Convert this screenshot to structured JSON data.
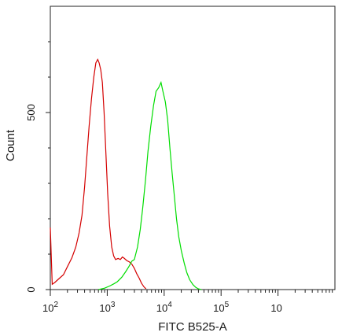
{
  "chart_data": {
    "type": "line",
    "title": "",
    "xlabel": "FITC B525-A",
    "ylabel": "Count",
    "x_scale": "log",
    "xlim": [
      100,
      10000000
    ],
    "ylim": [
      0,
      800
    ],
    "x_ticks": [
      {
        "value": 100,
        "base": "10",
        "exp": "2"
      },
      {
        "value": 1000,
        "base": "10",
        "exp": "3"
      },
      {
        "value": 10000,
        "base": "10",
        "exp": "4"
      },
      {
        "value": 100000,
        "base": "10",
        "exp": "5"
      },
      {
        "value": 1000000,
        "base": "10",
        "exp": ""
      }
    ],
    "y_ticks": [
      {
        "value": 0,
        "label": "0"
      },
      {
        "value": 500,
        "label": "500"
      }
    ],
    "y_minor_ticks": [
      100,
      200,
      300,
      400,
      600,
      700
    ],
    "grid": false,
    "legend": "none",
    "series": [
      {
        "color": "#d40000",
        "points": [
          [
            100,
            175
          ],
          [
            108,
            15
          ],
          [
            120,
            20
          ],
          [
            140,
            30
          ],
          [
            170,
            42
          ],
          [
            200,
            65
          ],
          [
            240,
            90
          ],
          [
            280,
            120
          ],
          [
            320,
            160
          ],
          [
            360,
            210
          ],
          [
            400,
            290
          ],
          [
            440,
            380
          ],
          [
            480,
            460
          ],
          [
            530,
            540
          ],
          [
            580,
            600
          ],
          [
            630,
            640
          ],
          [
            680,
            650
          ],
          [
            720,
            640
          ],
          [
            770,
            620
          ],
          [
            820,
            585
          ],
          [
            880,
            500
          ],
          [
            950,
            380
          ],
          [
            1020,
            270
          ],
          [
            1100,
            180
          ],
          [
            1200,
            120
          ],
          [
            1300,
            95
          ],
          [
            1400,
            85
          ],
          [
            1550,
            88
          ],
          [
            1700,
            85
          ],
          [
            1850,
            92
          ],
          [
            2000,
            88
          ],
          [
            2200,
            82
          ],
          [
            2450,
            78
          ],
          [
            2700,
            72
          ],
          [
            3000,
            60
          ],
          [
            3300,
            45
          ],
          [
            3650,
            32
          ],
          [
            4000,
            18
          ],
          [
            4400,
            8
          ],
          [
            4800,
            2
          ]
        ]
      },
      {
        "color": "#00dd00",
        "points": [
          [
            700,
            0
          ],
          [
            900,
            4
          ],
          [
            1100,
            10
          ],
          [
            1300,
            16
          ],
          [
            1500,
            22
          ],
          [
            1800,
            35
          ],
          [
            2100,
            50
          ],
          [
            2400,
            65
          ],
          [
            2700,
            80
          ],
          [
            3000,
            85
          ],
          [
            3400,
            120
          ],
          [
            3800,
            170
          ],
          [
            4200,
            230
          ],
          [
            4700,
            310
          ],
          [
            5200,
            390
          ],
          [
            5800,
            460
          ],
          [
            6500,
            520
          ],
          [
            7200,
            560
          ],
          [
            8000,
            570
          ],
          [
            8800,
            585
          ],
          [
            9500,
            560
          ],
          [
            10500,
            530
          ],
          [
            11500,
            480
          ],
          [
            12600,
            400
          ],
          [
            13800,
            330
          ],
          [
            15000,
            270
          ],
          [
            16500,
            200
          ],
          [
            18000,
            150
          ],
          [
            20000,
            110
          ],
          [
            22500,
            75
          ],
          [
            25000,
            48
          ],
          [
            28000,
            28
          ],
          [
            32000,
            14
          ],
          [
            36000,
            6
          ],
          [
            40000,
            2
          ],
          [
            45000,
            0
          ]
        ]
      }
    ]
  }
}
